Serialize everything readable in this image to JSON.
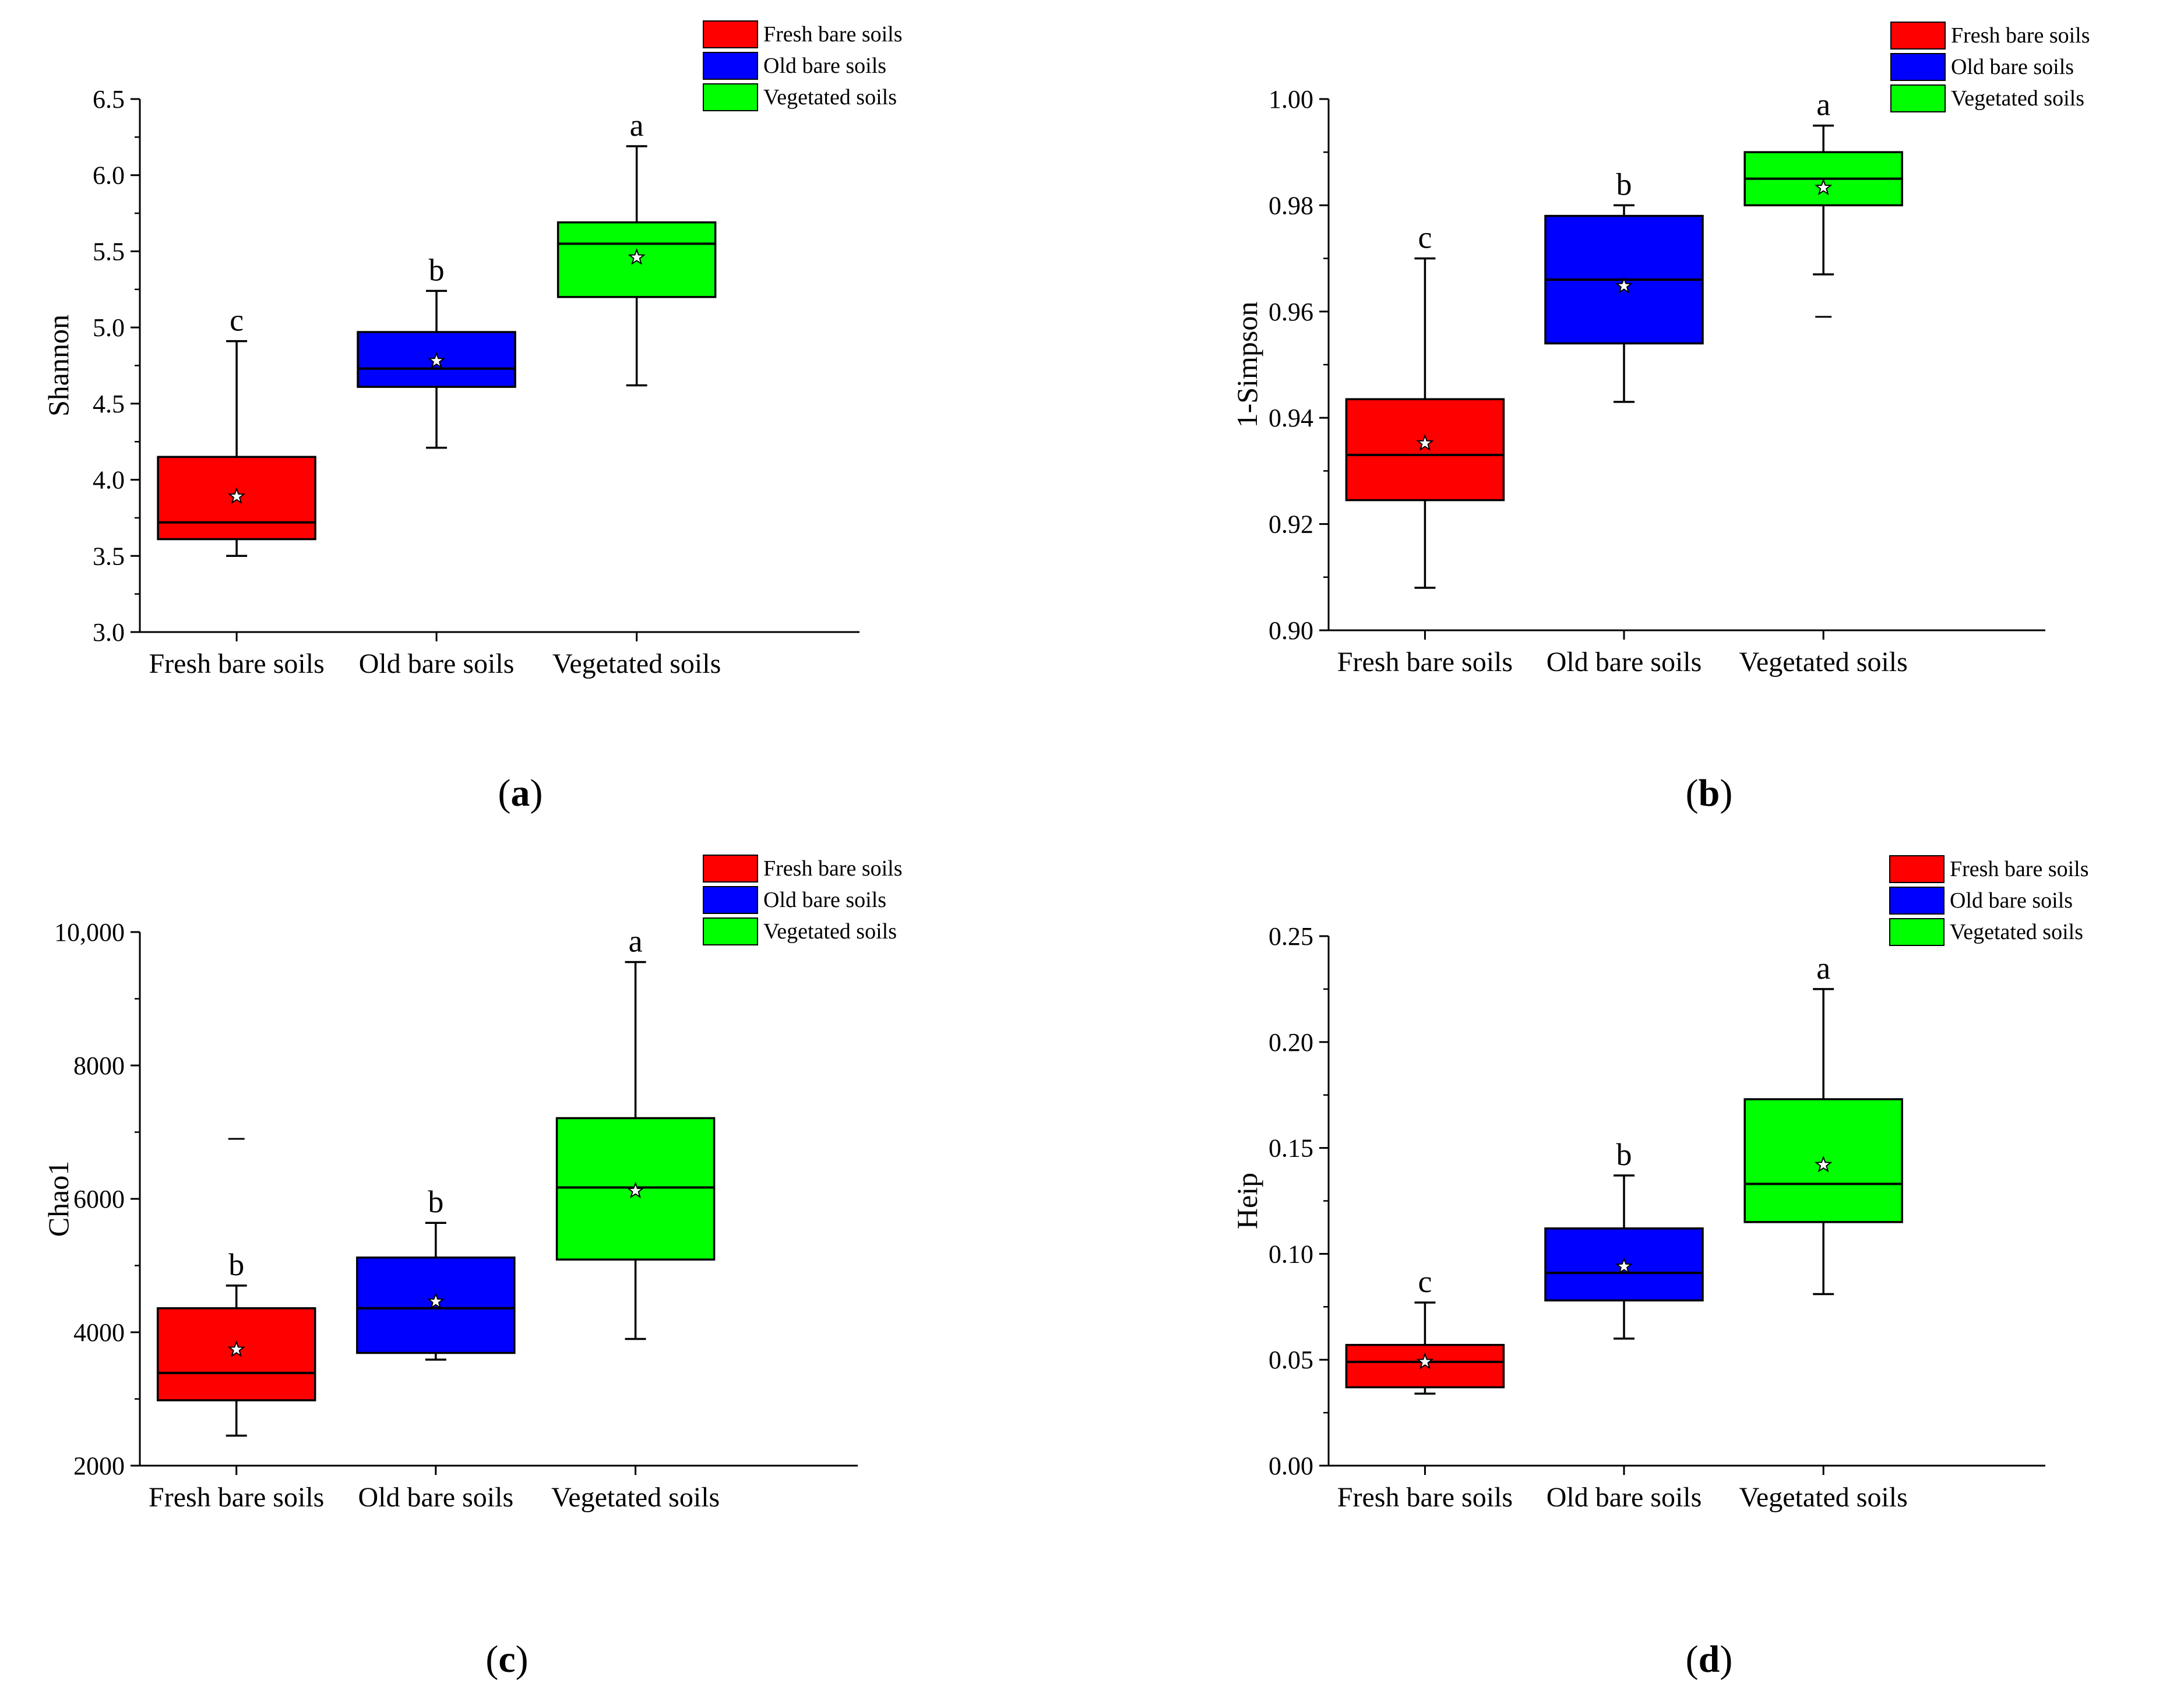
{
  "groups": [
    "Fresh bare soils",
    "Old bare soils",
    "Vegetated soils"
  ],
  "colors": {
    "Fresh bare soils": "#ff0000",
    "Old bare soils": "#0000ff",
    "Vegetated soils": "#00ff00"
  },
  "legend": [
    "Fresh bare soils",
    "Old bare soils",
    "Vegetated soils"
  ],
  "chart_data": [
    {
      "type": "box",
      "panel": "a",
      "ylabel": "Shannon",
      "ylim": [
        3.0,
        6.5
      ],
      "yticks": [
        3.0,
        3.5,
        4.0,
        4.5,
        5.0,
        5.5,
        6.0,
        6.5
      ],
      "ytick_labels": [
        "3.0",
        "3.5",
        "4.0",
        "4.5",
        "5.0",
        "5.5",
        "6.0",
        "6.5"
      ],
      "boxes": [
        {
          "group": "Fresh bare soils",
          "whisker_low": 3.5,
          "q1": 3.61,
          "median": 3.72,
          "q3": 4.15,
          "whisker_high": 4.91,
          "mean": 3.89,
          "letter": "c",
          "outliers": []
        },
        {
          "group": "Old bare soils",
          "whisker_low": 4.21,
          "q1": 4.61,
          "median": 4.73,
          "q3": 4.97,
          "whisker_high": 5.24,
          "mean": 4.78,
          "letter": "b",
          "outliers": []
        },
        {
          "group": "Vegetated soils",
          "whisker_low": 4.62,
          "q1": 5.2,
          "median": 5.55,
          "q3": 5.69,
          "whisker_high": 6.19,
          "mean": 5.46,
          "letter": "a",
          "outliers": []
        }
      ]
    },
    {
      "type": "box",
      "panel": "b",
      "ylabel": "1-Simpson",
      "ylim": [
        0.9,
        1.0
      ],
      "yticks": [
        0.9,
        0.92,
        0.94,
        0.96,
        0.98,
        1.0
      ],
      "ytick_labels": [
        "0.90",
        "0.92",
        "0.94",
        "0.96",
        "0.98",
        "1.00"
      ],
      "boxes": [
        {
          "group": "Fresh bare soils",
          "whisker_low": 0.908,
          "q1": 0.9245,
          "median": 0.933,
          "q3": 0.9435,
          "whisker_high": 0.97,
          "mean": 0.9352,
          "letter": "c",
          "outliers": []
        },
        {
          "group": "Old bare soils",
          "whisker_low": 0.943,
          "q1": 0.954,
          "median": 0.966,
          "q3": 0.978,
          "whisker_high": 0.98,
          "mean": 0.9648,
          "letter": "b",
          "outliers": []
        },
        {
          "group": "Vegetated soils",
          "whisker_low": 0.967,
          "q1": 0.98,
          "median": 0.985,
          "q3": 0.99,
          "whisker_high": 0.995,
          "mean": 0.9833,
          "letter": "a",
          "outliers": [
            0.959
          ]
        }
      ]
    },
    {
      "type": "box",
      "panel": "c",
      "ylabel": "Chao1",
      "ylim": [
        2000,
        10000
      ],
      "yticks": [
        2000,
        4000,
        6000,
        8000,
        10000
      ],
      "ytick_labels": [
        "2000",
        "4000",
        "6000",
        "8000",
        "10,000"
      ],
      "boxes": [
        {
          "group": "Fresh bare soils",
          "whisker_low": 2450,
          "q1": 2980,
          "median": 3390,
          "q3": 4360,
          "whisker_high": 4700,
          "mean": 3740,
          "letter": "b",
          "outliers": [
            6900
          ]
        },
        {
          "group": "Old bare soils",
          "whisker_low": 3590,
          "q1": 3690,
          "median": 4360,
          "q3": 5120,
          "whisker_high": 5640,
          "mean": 4460,
          "letter": "b",
          "outliers": []
        },
        {
          "group": "Vegetated soils",
          "whisker_low": 3900,
          "q1": 5090,
          "median": 6170,
          "q3": 7210,
          "whisker_high": 9550,
          "mean": 6120,
          "letter": "a",
          "outliers": []
        }
      ]
    },
    {
      "type": "box",
      "panel": "d",
      "ylabel": "Heip",
      "ylim": [
        0.0,
        0.25
      ],
      "yticks": [
        0.0,
        0.05,
        0.1,
        0.15,
        0.2,
        0.25
      ],
      "ytick_labels": [
        "0.00",
        "0.05",
        "0.10",
        "0.15",
        "0.20",
        "0.25"
      ],
      "boxes": [
        {
          "group": "Fresh bare soils",
          "whisker_low": 0.034,
          "q1": 0.037,
          "median": 0.049,
          "q3": 0.057,
          "whisker_high": 0.077,
          "mean": 0.049,
          "letter": "c",
          "outliers": []
        },
        {
          "group": "Old bare soils",
          "whisker_low": 0.06,
          "q1": 0.078,
          "median": 0.091,
          "q3": 0.112,
          "whisker_high": 0.137,
          "mean": 0.094,
          "letter": "b",
          "outliers": []
        },
        {
          "group": "Vegetated soils",
          "whisker_low": 0.081,
          "q1": 0.115,
          "median": 0.133,
          "q3": 0.173,
          "whisker_high": 0.225,
          "mean": 0.142,
          "letter": "a",
          "outliers": []
        }
      ]
    }
  ]
}
